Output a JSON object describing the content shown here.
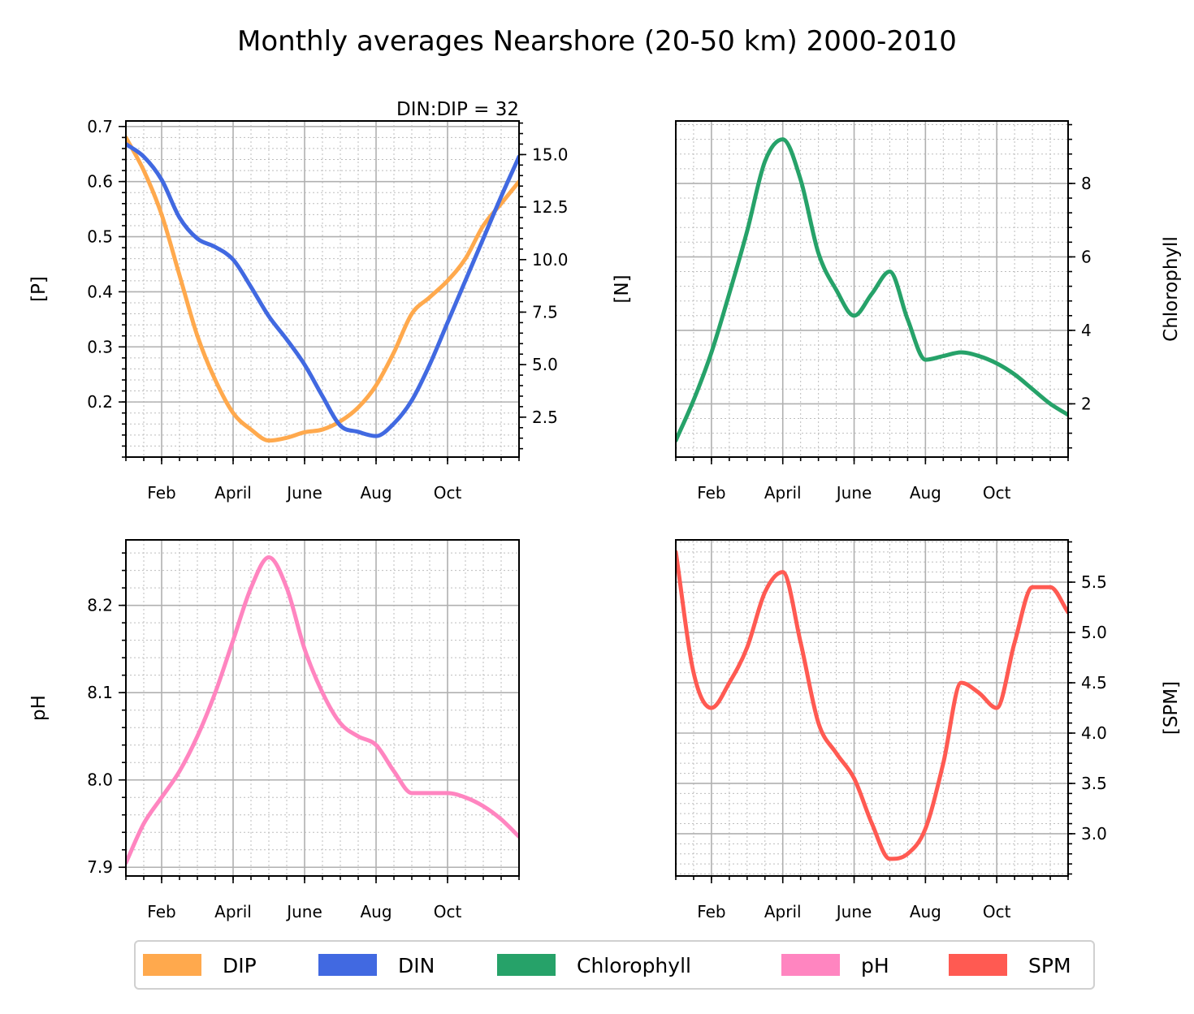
{
  "title": "Monthly averages Nearshore (20-50 km) 2000-2010",
  "legend": {
    "position": "bottom-center",
    "entries": [
      {
        "label": "DIP",
        "color": "#FFA94D"
      },
      {
        "label": "DIN",
        "color": "#4169E1"
      },
      {
        "label": "Chlorophyll",
        "color": "#26A269"
      },
      {
        "label": "pH",
        "color": "#FF85C0"
      },
      {
        "label": "SPM",
        "color": "#FF5A52"
      }
    ]
  },
  "chart_data": [
    {
      "type": "line",
      "annotation": "DIN:DIP = 32",
      "xlim": [
        1,
        12
      ],
      "xticks": [
        {
          "x": 2,
          "label": "Feb"
        },
        {
          "x": 4,
          "label": "April"
        },
        {
          "x": 6,
          "label": "June"
        },
        {
          "x": 8,
          "label": "Aug"
        },
        {
          "x": 10,
          "label": "Oct"
        }
      ],
      "grid": true,
      "y_left": {
        "label": "[P]",
        "lim": [
          0.1,
          0.71
        ],
        "ticks": [
          0.2,
          0.3,
          0.4,
          0.5,
          0.6,
          0.7
        ],
        "tick_labels": [
          "0.2",
          "0.3",
          "0.4",
          "0.5",
          "0.6",
          "0.7"
        ]
      },
      "y_right": {
        "label": "[N]",
        "lim": [
          0.6,
          16.6
        ],
        "ticks": [
          2.5,
          5.0,
          7.5,
          10.0,
          12.5,
          15.0
        ],
        "tick_labels": [
          "2.5",
          "5.0",
          "7.5",
          "10.0",
          "12.5",
          "15.0"
        ]
      },
      "series": [
        {
          "name": "DIP",
          "axis": "left",
          "color": "#FFA94D",
          "x": [
            1,
            1.5,
            2,
            2.5,
            3,
            3.5,
            4,
            4.5,
            5,
            5.5,
            6,
            6.5,
            7,
            7.5,
            8,
            8.5,
            9,
            9.5,
            10,
            10.5,
            11,
            11.5,
            12
          ],
          "y": [
            0.68,
            0.62,
            0.54,
            0.43,
            0.32,
            0.24,
            0.18,
            0.15,
            0.13,
            0.135,
            0.145,
            0.15,
            0.165,
            0.19,
            0.23,
            0.29,
            0.36,
            0.39,
            0.42,
            0.46,
            0.52,
            0.56,
            0.6
          ]
        },
        {
          "name": "DIN",
          "axis": "right",
          "color": "#4169E1",
          "x": [
            1,
            1.5,
            2,
            2.5,
            3,
            3.5,
            4,
            4.5,
            5,
            5.5,
            6,
            6.5,
            7,
            7.5,
            8,
            8.5,
            9,
            9.5,
            10,
            10.5,
            11,
            11.5,
            12
          ],
          "y": [
            15.5,
            14.9,
            13.8,
            12.0,
            11.0,
            10.6,
            10.0,
            8.7,
            7.3,
            6.2,
            5.0,
            3.5,
            2.1,
            1.8,
            1.6,
            2.2,
            3.3,
            5.0,
            7.0,
            9.0,
            11.0,
            13.0,
            14.9
          ]
        }
      ]
    },
    {
      "type": "line",
      "xlim": [
        1,
        12
      ],
      "xticks": [
        {
          "x": 2,
          "label": "Feb"
        },
        {
          "x": 4,
          "label": "April"
        },
        {
          "x": 6,
          "label": "June"
        },
        {
          "x": 8,
          "label": "Aug"
        },
        {
          "x": 10,
          "label": "Oct"
        }
      ],
      "grid": true,
      "y_right": {
        "label": "Chlorophyll",
        "lim": [
          0.55,
          9.7
        ],
        "ticks": [
          2,
          4,
          6,
          8
        ],
        "tick_labels": [
          "2",
          "4",
          "6",
          "8"
        ]
      },
      "series": [
        {
          "name": "Chlorophyll",
          "axis": "right",
          "color": "#26A269",
          "x": [
            1,
            1.5,
            2,
            2.5,
            3,
            3.5,
            4,
            4.5,
            5,
            5.5,
            6,
            6.5,
            7,
            7.5,
            8,
            8.5,
            9,
            9.5,
            10,
            10.5,
            11,
            11.5,
            12
          ],
          "y": [
            1.0,
            2.1,
            3.4,
            5.0,
            6.7,
            8.6,
            9.2,
            8.1,
            6.1,
            5.1,
            4.4,
            5.0,
            5.6,
            4.3,
            3.2,
            3.3,
            3.4,
            3.3,
            3.1,
            2.8,
            2.4,
            2.0,
            1.7
          ]
        }
      ]
    },
    {
      "type": "line",
      "xlim": [
        1,
        12
      ],
      "xticks": [
        {
          "x": 2,
          "label": "Feb"
        },
        {
          "x": 4,
          "label": "April"
        },
        {
          "x": 6,
          "label": "June"
        },
        {
          "x": 8,
          "label": "Aug"
        },
        {
          "x": 10,
          "label": "Oct"
        }
      ],
      "grid": true,
      "y_left": {
        "label": "pH",
        "lim": [
          7.89,
          8.275
        ],
        "ticks": [
          7.9,
          8.0,
          8.1,
          8.2
        ],
        "tick_labels": [
          "7.9",
          "8.0",
          "8.1",
          "8.2"
        ]
      },
      "series": [
        {
          "name": "pH",
          "axis": "left",
          "color": "#FF85C0",
          "x": [
            1,
            1.5,
            2,
            2.5,
            3,
            3.5,
            4,
            4.5,
            5,
            5.5,
            6,
            6.5,
            7,
            7.5,
            8,
            8.5,
            9,
            9.5,
            10,
            10.5,
            11,
            11.5,
            12
          ],
          "y": [
            7.905,
            7.95,
            7.98,
            8.01,
            8.05,
            8.1,
            8.16,
            8.22,
            8.255,
            8.22,
            8.15,
            8.1,
            8.065,
            8.05,
            8.04,
            8.01,
            7.985,
            7.985,
            7.985,
            7.98,
            7.97,
            7.955,
            7.935
          ]
        }
      ]
    },
    {
      "type": "line",
      "xlim": [
        1,
        12
      ],
      "xticks": [
        {
          "x": 2,
          "label": "Feb"
        },
        {
          "x": 4,
          "label": "April"
        },
        {
          "x": 6,
          "label": "June"
        },
        {
          "x": 8,
          "label": "Aug"
        },
        {
          "x": 10,
          "label": "Oct"
        }
      ],
      "grid": true,
      "y_right": {
        "label": "[SPM]",
        "lim": [
          2.58,
          5.92
        ],
        "ticks": [
          3.0,
          3.5,
          4.0,
          4.5,
          5.0,
          5.5
        ],
        "tick_labels": [
          "3.0",
          "3.5",
          "4.0",
          "4.5",
          "5.0",
          "5.5"
        ]
      },
      "series": [
        {
          "name": "SPM",
          "axis": "right",
          "color": "#FF5A52",
          "x": [
            1,
            1.5,
            2,
            2.5,
            3,
            3.5,
            4,
            4.5,
            5,
            5.5,
            6,
            6.5,
            7,
            7.5,
            8,
            8.5,
            9,
            9.5,
            10,
            10.5,
            11,
            11.5,
            12
          ],
          "y": [
            5.8,
            4.6,
            4.25,
            4.5,
            4.85,
            5.4,
            5.6,
            4.9,
            4.1,
            3.8,
            3.55,
            3.1,
            2.75,
            2.8,
            3.05,
            3.7,
            4.5,
            4.4,
            4.25,
            4.9,
            5.45,
            5.45,
            5.2
          ]
        }
      ]
    }
  ]
}
